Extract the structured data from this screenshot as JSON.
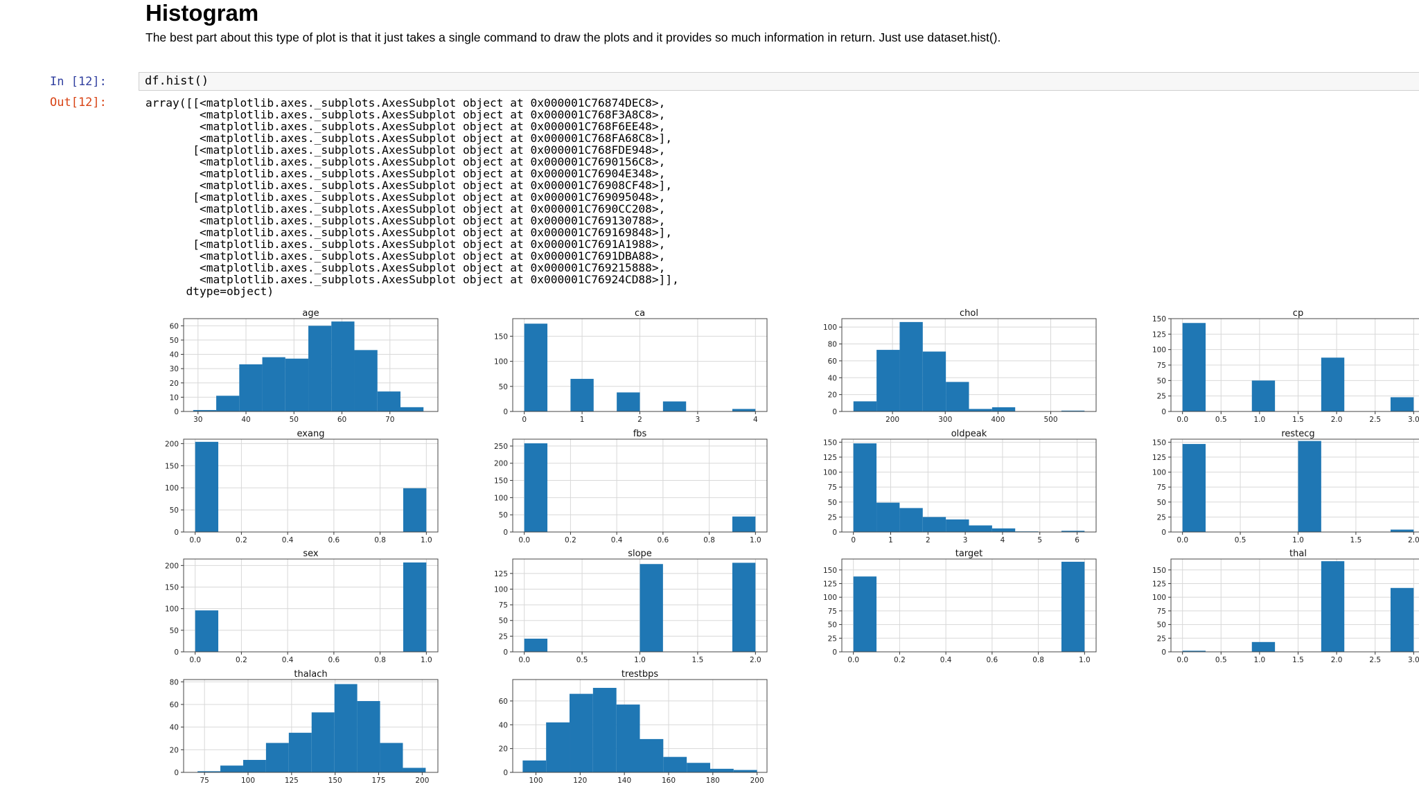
{
  "section": {
    "title": "Histogram",
    "description": "The best part about this type of plot is that it just takes a single command to draw the plots and it provides so much information in return. Just use dataset.hist()."
  },
  "cell": {
    "in_prompt": "In [12]:",
    "code": "df.hist()",
    "out_prompt": "Out[12]:"
  },
  "output_lines": [
    "array([[<matplotlib.axes._subplots.AxesSubplot object at 0x000001C76874DEC8>,",
    "        <matplotlib.axes._subplots.AxesSubplot object at 0x000001C768F3A8C8>,",
    "        <matplotlib.axes._subplots.AxesSubplot object at 0x000001C768F6EE48>,",
    "        <matplotlib.axes._subplots.AxesSubplot object at 0x000001C768FA68C8>],",
    "       [<matplotlib.axes._subplots.AxesSubplot object at 0x000001C768FDE948>,",
    "        <matplotlib.axes._subplots.AxesSubplot object at 0x000001C7690156C8>,",
    "        <matplotlib.axes._subplots.AxesSubplot object at 0x000001C76904E348>,",
    "        <matplotlib.axes._subplots.AxesSubplot object at 0x000001C76908CF48>],",
    "       [<matplotlib.axes._subplots.AxesSubplot object at 0x000001C769095048>,",
    "        <matplotlib.axes._subplots.AxesSubplot object at 0x000001C7690CC208>,",
    "        <matplotlib.axes._subplots.AxesSubplot object at 0x000001C769130788>,",
    "        <matplotlib.axes._subplots.AxesSubplot object at 0x000001C769169848>],",
    "       [<matplotlib.axes._subplots.AxesSubplot object at 0x000001C7691A1988>,",
    "        <matplotlib.axes._subplots.AxesSubplot object at 0x000001C7691DBA88>,",
    "        <matplotlib.axes._subplots.AxesSubplot object at 0x000001C769215888>,",
    "        <matplotlib.axes._subplots.AxesSubplot object at 0x000001C76924CD88>]],",
    "      dtype=object)"
  ],
  "colors": {
    "bar": "#1f77b4",
    "grid": "#d8d8d8",
    "prompt_in": "#303f9f",
    "prompt_out": "#d84315"
  },
  "chart_data": [
    {
      "type": "bar",
      "title": "age",
      "xlim": [
        27,
        80
      ],
      "ylim": [
        0,
        65
      ],
      "x_ticks": [
        30,
        40,
        50,
        60,
        70
      ],
      "x_tick_labels": [
        "30",
        "40",
        "50",
        "60",
        "70"
      ],
      "y_ticks": [
        0,
        10,
        20,
        30,
        40,
        50,
        60
      ],
      "y_tick_labels": [
        "0",
        "10",
        "20",
        "30",
        "40",
        "50",
        "60"
      ],
      "bins": [
        [
          29,
          33.8,
          1
        ],
        [
          33.8,
          38.6,
          11
        ],
        [
          38.6,
          43.4,
          33
        ],
        [
          43.4,
          48.2,
          38
        ],
        [
          48.2,
          53,
          37
        ],
        [
          53,
          57.8,
          60
        ],
        [
          57.8,
          62.6,
          63
        ],
        [
          62.6,
          67.4,
          43
        ],
        [
          67.4,
          72.2,
          14
        ],
        [
          72.2,
          77,
          3
        ]
      ]
    },
    {
      "type": "bar",
      "title": "ca",
      "xlim": [
        -0.2,
        4.2
      ],
      "ylim": [
        0,
        185
      ],
      "x_ticks": [
        0,
        1,
        2,
        3,
        4
      ],
      "x_tick_labels": [
        "0",
        "1",
        "2",
        "3",
        "4"
      ],
      "y_ticks": [
        0,
        50,
        100,
        150
      ],
      "y_tick_labels": [
        "0",
        "50",
        "100",
        "150"
      ],
      "bins": [
        [
          0,
          0.4,
          175
        ],
        [
          0.8,
          1.2,
          65
        ],
        [
          1.6,
          2,
          38
        ],
        [
          2.4,
          2.8,
          20
        ],
        [
          3.6,
          4,
          5
        ]
      ]
    },
    {
      "type": "bar",
      "title": "chol",
      "xlim": [
        104,
        586
      ],
      "ylim": [
        0,
        110
      ],
      "x_ticks": [
        200,
        300,
        400,
        500
      ],
      "x_tick_labels": [
        "200",
        "300",
        "400",
        "500"
      ],
      "y_ticks": [
        0,
        20,
        40,
        60,
        80,
        100
      ],
      "y_tick_labels": [
        "0",
        "20",
        "40",
        "60",
        "80",
        "100"
      ],
      "bins": [
        [
          126,
          169.8,
          12
        ],
        [
          169.8,
          213.6,
          73
        ],
        [
          213.6,
          257.4,
          106
        ],
        [
          257.4,
          301.2,
          71
        ],
        [
          301.2,
          345,
          35
        ],
        [
          345,
          388.8,
          3
        ],
        [
          388.8,
          432.6,
          5
        ],
        [
          432.6,
          476.4,
          0
        ],
        [
          476.4,
          520.2,
          0
        ],
        [
          520.2,
          564,
          1
        ]
      ]
    },
    {
      "type": "bar",
      "title": "cp",
      "xlim": [
        -0.15,
        3.15
      ],
      "ylim": [
        0,
        150
      ],
      "x_ticks": [
        0,
        0.5,
        1,
        1.5,
        2,
        2.5,
        3
      ],
      "x_tick_labels": [
        "0.0",
        "0.5",
        "1.0",
        "1.5",
        "2.0",
        "2.5",
        "3.0"
      ],
      "y_ticks": [
        0,
        25,
        50,
        75,
        100,
        125,
        150
      ],
      "y_tick_labels": [
        "0",
        "25",
        "50",
        "75",
        "100",
        "125",
        "150"
      ],
      "bins": [
        [
          0,
          0.3,
          143
        ],
        [
          0.9,
          1.2,
          50
        ],
        [
          1.8,
          2.1,
          87
        ],
        [
          2.7,
          3,
          23
        ]
      ]
    },
    {
      "type": "bar",
      "title": "exang",
      "xlim": [
        -0.05,
        1.05
      ],
      "ylim": [
        0,
        210
      ],
      "x_ticks": [
        0,
        0.2,
        0.4,
        0.6,
        0.8,
        1
      ],
      "x_tick_labels": [
        "0.0",
        "0.2",
        "0.4",
        "0.6",
        "0.8",
        "1.0"
      ],
      "y_ticks": [
        0,
        50,
        100,
        150,
        200
      ],
      "y_tick_labels": [
        "0",
        "50",
        "100",
        "150",
        "200"
      ],
      "bins": [
        [
          0,
          0.1,
          204
        ],
        [
          0.9,
          1,
          99
        ]
      ]
    },
    {
      "type": "bar",
      "title": "fbs",
      "xlim": [
        -0.05,
        1.05
      ],
      "ylim": [
        0,
        270
      ],
      "x_ticks": [
        0,
        0.2,
        0.4,
        0.6,
        0.8,
        1
      ],
      "x_tick_labels": [
        "0.0",
        "0.2",
        "0.4",
        "0.6",
        "0.8",
        "1.0"
      ],
      "y_ticks": [
        0,
        50,
        100,
        150,
        200,
        250
      ],
      "y_tick_labels": [
        "0",
        "50",
        "100",
        "150",
        "200",
        "250"
      ],
      "bins": [
        [
          0,
          0.1,
          258
        ],
        [
          0.9,
          1,
          45
        ]
      ]
    },
    {
      "type": "bar",
      "title": "oldpeak",
      "xlim": [
        -0.31,
        6.51
      ],
      "ylim": [
        0,
        155
      ],
      "x_ticks": [
        0,
        1,
        2,
        3,
        4,
        5,
        6
      ],
      "x_tick_labels": [
        "0",
        "1",
        "2",
        "3",
        "4",
        "5",
        "6"
      ],
      "y_ticks": [
        0,
        25,
        50,
        75,
        100,
        125,
        150
      ],
      "y_tick_labels": [
        "0",
        "25",
        "50",
        "75",
        "100",
        "125",
        "150"
      ],
      "bins": [
        [
          0,
          0.62,
          148
        ],
        [
          0.62,
          1.24,
          49
        ],
        [
          1.24,
          1.86,
          40
        ],
        [
          1.86,
          2.48,
          25
        ],
        [
          2.48,
          3.1,
          21
        ],
        [
          3.1,
          3.72,
          11
        ],
        [
          3.72,
          4.34,
          6
        ],
        [
          4.34,
          4.96,
          1
        ],
        [
          4.96,
          5.58,
          0
        ],
        [
          5.58,
          6.2,
          2
        ]
      ]
    },
    {
      "type": "bar",
      "title": "restecg",
      "xlim": [
        -0.1,
        2.1
      ],
      "ylim": [
        0,
        155
      ],
      "x_ticks": [
        0,
        0.5,
        1,
        1.5,
        2
      ],
      "x_tick_labels": [
        "0.0",
        "0.5",
        "1.0",
        "1.5",
        "2.0"
      ],
      "y_ticks": [
        0,
        25,
        50,
        75,
        100,
        125,
        150
      ],
      "y_tick_labels": [
        "0",
        "25",
        "50",
        "75",
        "100",
        "125",
        "150"
      ],
      "bins": [
        [
          0,
          0.2,
          147
        ],
        [
          1,
          1.2,
          152
        ],
        [
          1.8,
          2,
          4
        ]
      ]
    },
    {
      "type": "bar",
      "title": "sex",
      "xlim": [
        -0.05,
        1.05
      ],
      "ylim": [
        0,
        215
      ],
      "x_ticks": [
        0,
        0.2,
        0.4,
        0.6,
        0.8,
        1
      ],
      "x_tick_labels": [
        "0.0",
        "0.2",
        "0.4",
        "0.6",
        "0.8",
        "1.0"
      ],
      "y_ticks": [
        0,
        50,
        100,
        150,
        200
      ],
      "y_tick_labels": [
        "0",
        "50",
        "100",
        "150",
        "200"
      ],
      "bins": [
        [
          0,
          0.1,
          96
        ],
        [
          0.9,
          1,
          207
        ]
      ]
    },
    {
      "type": "bar",
      "title": "slope",
      "xlim": [
        -0.1,
        2.1
      ],
      "ylim": [
        0,
        148
      ],
      "x_ticks": [
        0,
        0.5,
        1,
        1.5,
        2
      ],
      "x_tick_labels": [
        "0.0",
        "0.5",
        "1.0",
        "1.5",
        "2.0"
      ],
      "y_ticks": [
        0,
        25,
        50,
        75,
        100,
        125
      ],
      "y_tick_labels": [
        "0",
        "25",
        "50",
        "75",
        "100",
        "125"
      ],
      "bins": [
        [
          0,
          0.2,
          21
        ],
        [
          1,
          1.2,
          140
        ],
        [
          1.8,
          2,
          142
        ]
      ]
    },
    {
      "type": "bar",
      "title": "target",
      "xlim": [
        -0.05,
        1.05
      ],
      "ylim": [
        0,
        170
      ],
      "x_ticks": [
        0,
        0.2,
        0.4,
        0.6,
        0.8,
        1
      ],
      "x_tick_labels": [
        "0.0",
        "0.2",
        "0.4",
        "0.6",
        "0.8",
        "1.0"
      ],
      "y_ticks": [
        0,
        25,
        50,
        75,
        100,
        125,
        150
      ],
      "y_tick_labels": [
        "0",
        "25",
        "50",
        "75",
        "100",
        "125",
        "150"
      ],
      "bins": [
        [
          0,
          0.1,
          138
        ],
        [
          0.9,
          1,
          165
        ]
      ]
    },
    {
      "type": "bar",
      "title": "thal",
      "xlim": [
        -0.15,
        3.15
      ],
      "ylim": [
        0,
        170
      ],
      "x_ticks": [
        0,
        0.5,
        1,
        1.5,
        2,
        2.5,
        3
      ],
      "x_tick_labels": [
        "0.0",
        "0.5",
        "1.0",
        "1.5",
        "2.0",
        "2.5",
        "3.0"
      ],
      "y_ticks": [
        0,
        25,
        50,
        75,
        100,
        125,
        150
      ],
      "y_tick_labels": [
        "0",
        "25",
        "50",
        "75",
        "100",
        "125",
        "150"
      ],
      "bins": [
        [
          0,
          0.3,
          2
        ],
        [
          0.9,
          1.2,
          18
        ],
        [
          1.8,
          2.1,
          166
        ],
        [
          2.7,
          3,
          117
        ]
      ]
    },
    {
      "type": "bar",
      "title": "thalach",
      "xlim": [
        63,
        209
      ],
      "ylim": [
        0,
        82
      ],
      "x_ticks": [
        75,
        100,
        125,
        150,
        175,
        200
      ],
      "x_tick_labels": [
        "75",
        "100",
        "125",
        "150",
        "175",
        "200"
      ],
      "y_ticks": [
        0,
        20,
        40,
        60,
        80
      ],
      "y_tick_labels": [
        "0",
        "20",
        "40",
        "60",
        "80"
      ],
      "bins": [
        [
          71,
          84.1,
          1
        ],
        [
          84.1,
          97.2,
          6
        ],
        [
          97.2,
          110.3,
          11
        ],
        [
          110.3,
          123.4,
          26
        ],
        [
          123.4,
          136.5,
          35
        ],
        [
          136.5,
          149.6,
          53
        ],
        [
          149.6,
          162.7,
          78
        ],
        [
          162.7,
          175.8,
          63
        ],
        [
          175.8,
          188.9,
          26
        ],
        [
          188.9,
          202,
          4
        ]
      ]
    },
    {
      "type": "bar",
      "title": "trestbps",
      "xlim": [
        89.5,
        204.5
      ],
      "ylim": [
        0,
        78
      ],
      "x_ticks": [
        100,
        120,
        140,
        160,
        180,
        200
      ],
      "x_tick_labels": [
        "100",
        "120",
        "140",
        "160",
        "180",
        "200"
      ],
      "y_ticks": [
        0,
        20,
        40,
        60
      ],
      "y_tick_labels": [
        "0",
        "20",
        "40",
        "60"
      ],
      "bins": [
        [
          94,
          104.6,
          10
        ],
        [
          104.6,
          115.2,
          42
        ],
        [
          115.2,
          125.8,
          66
        ],
        [
          125.8,
          136.4,
          71
        ],
        [
          136.4,
          147,
          57
        ],
        [
          147,
          157.6,
          28
        ],
        [
          157.6,
          168.2,
          13
        ],
        [
          168.2,
          178.8,
          8
        ],
        [
          178.8,
          189.4,
          3
        ],
        [
          189.4,
          200,
          2
        ]
      ]
    }
  ]
}
